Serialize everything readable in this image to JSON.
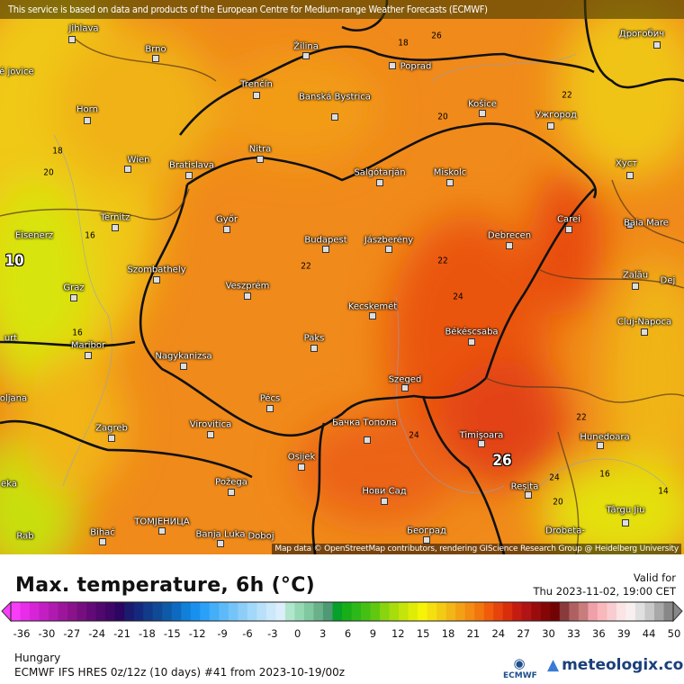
{
  "banner": "This service is based on data and products of the European Centre for Medium-range Weather Forecasts (ECMWF)",
  "attribution": "Map data © OpenStreetMap contributors, rendering GIScience Research Group @ Heidelberg University",
  "cities": [
    "Jihlava",
    "Brno",
    "Žilina",
    "Poprad",
    "Košice",
    "Ужгород",
    "Дрогобич",
    "Trenčín",
    "Banská Bystrica",
    "Horn",
    "Wien",
    "Bratislava",
    "Nitra",
    "Salgótarján",
    "Miskolc",
    "Хуст",
    "Ternitz",
    "Győr",
    "Carei",
    "Baia Mare",
    "Eisenerz",
    "Budapest",
    "Jászberény",
    "Debrecen",
    "Szombathely",
    "Veszprém",
    "Zalău",
    "Graz",
    "Dej",
    "Kecskemét",
    "Cluj-Napoca",
    "Maribor",
    "Paks",
    "Békéscsaba",
    "Nagykanizsa",
    "Szeged",
    "Pécs",
    "Бачка Топола",
    "Zagreb",
    "Virovitica",
    "Timișoara",
    "Hunedoara",
    "Osijek",
    "Požega",
    "Нови Сад",
    "Reșita",
    "Târgu Jiu",
    "ТОМЈЕНИЦА",
    "Bihać",
    "Banja Luka",
    "Doboj",
    "Београд",
    "Drobeta-",
    "oljana",
    "urt",
    "eské jovice",
    "eka",
    "Rab"
  ],
  "contour_labels": [
    "18",
    "20",
    "20",
    "22",
    "16",
    "22",
    "24",
    "16",
    "24",
    "22",
    "16",
    "24",
    "20",
    "14",
    "26",
    "10",
    "22",
    "18",
    "26"
  ],
  "legend": {
    "title": "Max. temperature, 6h (°C)",
    "valid_label": "Valid for",
    "valid_time": "Thu 2023-11-02, 19:00 CET",
    "ticks": [
      "-36",
      "-30",
      "-27",
      "-24",
      "-21",
      "-18",
      "-15",
      "-12",
      "-9",
      "-6",
      "-3",
      "0",
      "3",
      "6",
      "9",
      "12",
      "15",
      "18",
      "21",
      "24",
      "27",
      "30",
      "33",
      "36",
      "39",
      "44",
      "50"
    ],
    "colors": [
      "#f73df7",
      "#e82ce8",
      "#d624d6",
      "#c21ec2",
      "#b01ab0",
      "#9c169c",
      "#8a128a",
      "#760e80",
      "#620a78",
      "#50086e",
      "#3e0666",
      "#2c0462",
      "#1a1a6e",
      "#14287e",
      "#123a8a",
      "#104a96",
      "#0e5aa6",
      "#0e6ac0",
      "#1080d8",
      "#1a90ee",
      "#2aa0f8",
      "#44aef8",
      "#5cbaf8",
      "#74c4f8",
      "#8ccef8",
      "#a2d8fa",
      "#b8e0fa",
      "#cce8fb",
      "#dcedfb",
      "#b0e6cc",
      "#96d8b4",
      "#80c8a0",
      "#6ab088",
      "#4e9a74",
      "#06a02a",
      "#18ae18",
      "#2cb818",
      "#44c014",
      "#60c810",
      "#88d40e",
      "#a8dc0c",
      "#c4e40a",
      "#e0ec08",
      "#f6f406",
      "#f4e010",
      "#f2cc14",
      "#f2b616",
      "#f2a014",
      "#f28c12",
      "#f2760e",
      "#f05c0c",
      "#e6440c",
      "#d82e0c",
      "#c41c10",
      "#b01414",
      "#9a0c0c",
      "#840606",
      "#700404",
      "#8a3a3a",
      "#b06060",
      "#c87c7c",
      "#f0a0a8",
      "#f8b8bc",
      "#f8ccd0",
      "#fae4e4",
      "#f8f0f0",
      "#e0e0e0",
      "#c8c8c8",
      "#a8a8a8",
      "#888888"
    ]
  },
  "footer": {
    "region": "Hungary",
    "model": "ECMWF IFS HRES 0z/12z (10 days) #41 from  2023-10-19/00z",
    "ecmwf_logo": "ECMWF",
    "brand": "meteologix.com"
  }
}
